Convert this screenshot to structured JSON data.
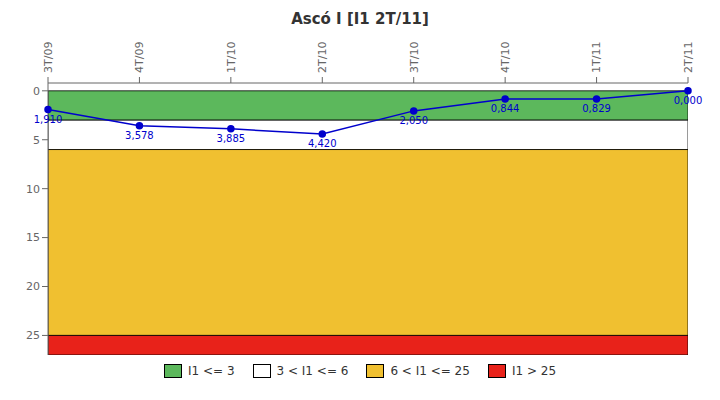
{
  "chart_data": {
    "type": "line",
    "title": "Ascó I [I1 2T/11]",
    "categories": [
      "3T/09",
      "4T/09",
      "1T/10",
      "2T/10",
      "3T/10",
      "4T/10",
      "1T/11",
      "2T/11"
    ],
    "values": [
      1.91,
      3.578,
      3.885,
      4.42,
      2.05,
      0.844,
      0.829,
      0.0
    ],
    "value_labels": [
      "1,910",
      "3,578",
      "3,885",
      "4,420",
      "2,050",
      "0,844",
      "0,829",
      "0,000"
    ],
    "data_labels": true,
    "color": "#0000cc",
    "marker": "circle",
    "ylim": [
      27,
      -0.8
    ],
    "yticks": [
      0,
      5,
      10,
      15,
      20,
      25
    ],
    "bands": [
      {
        "name": "I1 <= 3",
        "from": 0,
        "to": 3,
        "color": "#5cb85c"
      },
      {
        "name": "3 < I1 <= 6",
        "from": 3,
        "to": 6,
        "color": "#ffffff"
      },
      {
        "name": "6 < I1 <= 25",
        "from": 6,
        "to": 25,
        "color": "#f0c030"
      },
      {
        "name": "I1 > 25",
        "from": 25,
        "to": 27,
        "color": "#e8221a"
      }
    ],
    "legend": "bottom"
  }
}
